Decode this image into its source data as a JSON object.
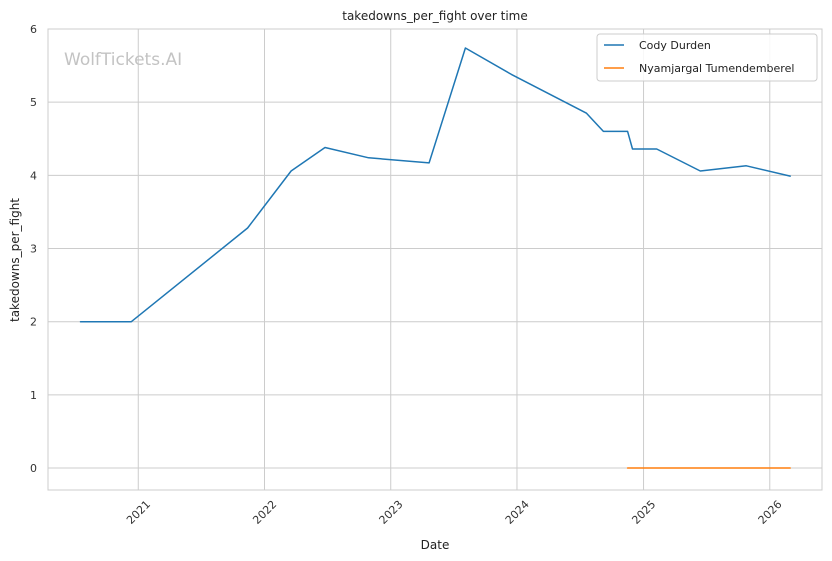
{
  "chart_data": {
    "type": "line",
    "title": "takedowns_per_fight over time",
    "xlabel": "Date",
    "ylabel": "takedowns_per_fight",
    "watermark": "WolfTickets.AI",
    "x_ticks": [
      "2021",
      "2022",
      "2023",
      "2024",
      "2025",
      "2026"
    ],
    "y_ticks": [
      "0",
      "1",
      "2",
      "3",
      "4",
      "5",
      "6"
    ],
    "xlim": [
      "2020-04-15",
      "2026-06-01"
    ],
    "ylim": [
      -0.3,
      6.0
    ],
    "grid": true,
    "legend_position": "top-right",
    "series": [
      {
        "name": "Cody Durden",
        "color": "#1f77b4",
        "points": [
          [
            "2020-07-18",
            2.0
          ],
          [
            "2020-12-12",
            2.0
          ],
          [
            "2021-11-13",
            3.28
          ],
          [
            "2022-03-19",
            4.06
          ],
          [
            "2022-06-25",
            4.38
          ],
          [
            "2022-10-29",
            4.24
          ],
          [
            "2023-04-22",
            4.17
          ],
          [
            "2023-08-05",
            5.74
          ],
          [
            "2023-12-16",
            5.38
          ],
          [
            "2024-07-20",
            4.85
          ],
          [
            "2024-09-07",
            4.6
          ],
          [
            "2024-11-16",
            4.6
          ],
          [
            "2024-11-30",
            4.36
          ],
          [
            "2025-02-08",
            4.36
          ],
          [
            "2025-06-14",
            4.06
          ],
          [
            "2025-10-25",
            4.13
          ],
          [
            "2026-03-01",
            3.99
          ]
        ]
      },
      {
        "name": "Nyamjargal Tumendemberel",
        "color": "#ff7f0e",
        "points": [
          [
            "2024-11-16",
            0.0
          ],
          [
            "2026-03-01",
            0.0
          ]
        ]
      }
    ]
  }
}
